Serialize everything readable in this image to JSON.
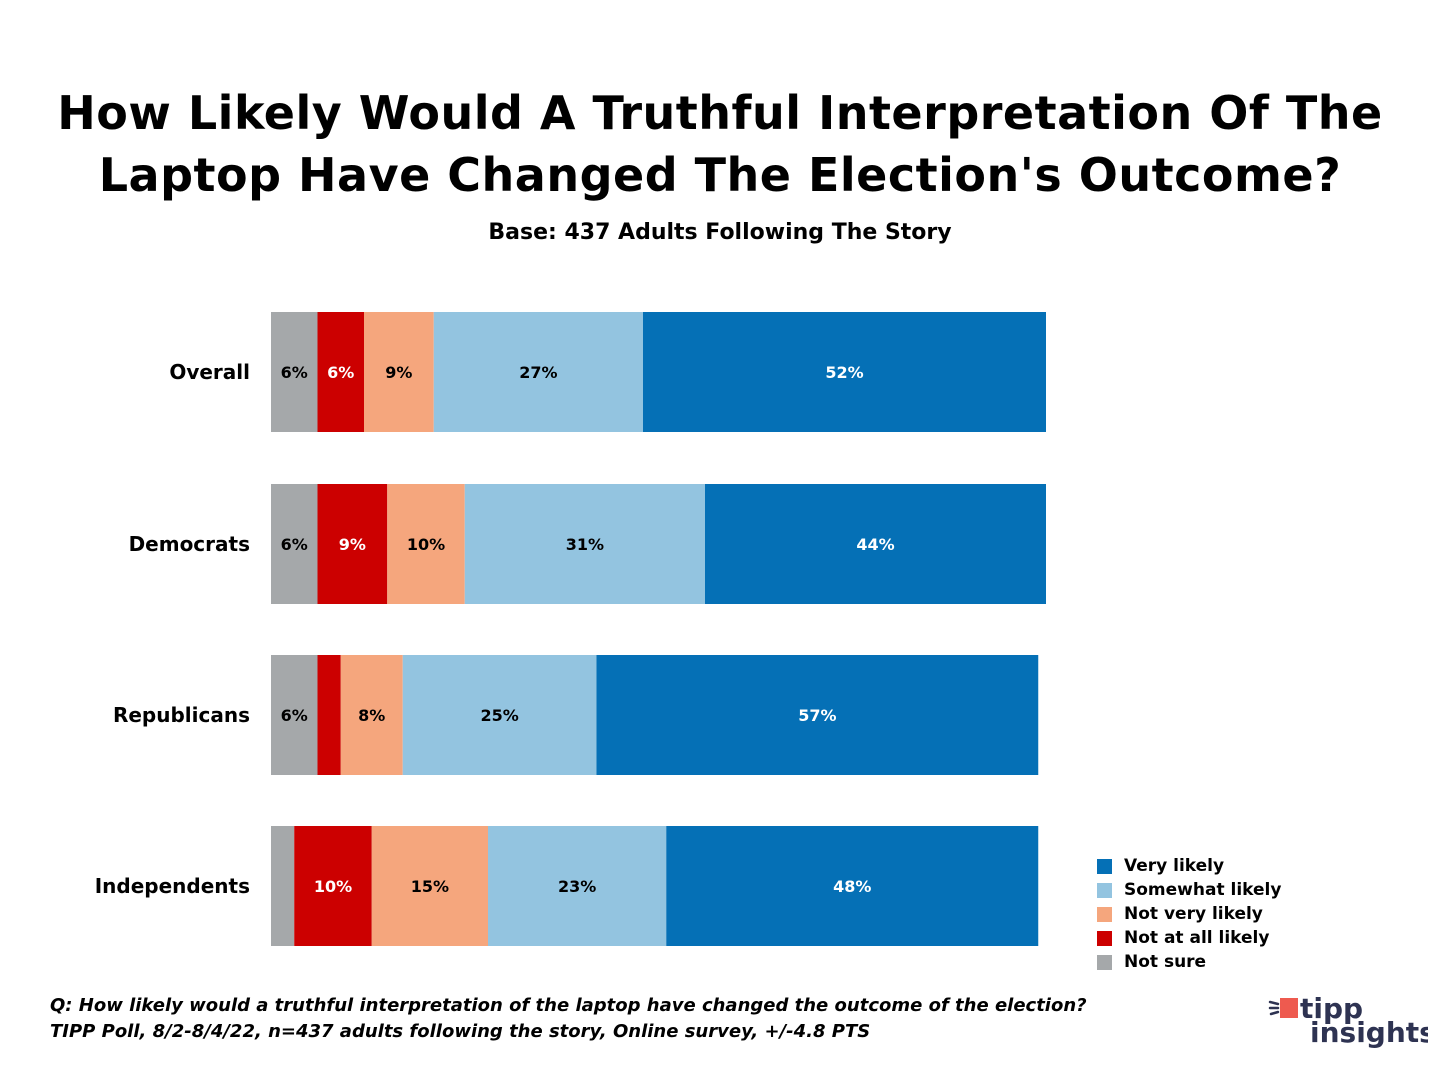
{
  "chart_data": {
    "type": "bar",
    "orientation": "horizontal",
    "stacked": true,
    "title": "How Likely Would A Truthful Interpretation Of The Laptop Have Changed The Election's Outcome?",
    "title_lines": [
      "How Likely Would A Truthful Interpretation Of The",
      "Laptop Have Changed The Election's Outcome?"
    ],
    "subtitle": "Base: 437 Adults Following The Story",
    "categories": [
      "Overall",
      "Democrats",
      "Republicans",
      "Independents"
    ],
    "series": [
      {
        "name": "Not sure",
        "color": "#a5a8aa",
        "label_color": "#000000",
        "values": [
          6,
          6,
          6,
          3
        ],
        "labels": [
          "6%",
          "6%",
          "6%",
          ""
        ]
      },
      {
        "name": "Not at all likely",
        "color": "#cc0000",
        "label_color": "#ffffff",
        "values": [
          6,
          9,
          3,
          10
        ],
        "labels": [
          "6%",
          "9%",
          "",
          "10%"
        ]
      },
      {
        "name": "Not very likely",
        "color": "#f5a67d",
        "label_color": "#000000",
        "values": [
          9,
          10,
          8,
          15
        ],
        "labels": [
          "9%",
          "10%",
          "8%",
          "15%"
        ]
      },
      {
        "name": "Somewhat likely",
        "color": "#93c4e0",
        "label_color": "#000000",
        "values": [
          27,
          31,
          25,
          23
        ],
        "labels": [
          "27%",
          "31%",
          "25%",
          "23%"
        ]
      },
      {
        "name": "Very likely",
        "color": "#0570b6",
        "label_color": "#ffffff",
        "values": [
          52,
          44,
          57,
          48
        ],
        "labels": [
          "52%",
          "44%",
          "57%",
          "48%"
        ]
      }
    ],
    "legend_order": [
      "Very likely",
      "Somewhat likely",
      "Not very likely",
      "Not at all likely",
      "Not sure"
    ],
    "legend_position": "bottom-right",
    "xlim": [
      0,
      100
    ],
    "grid": false
  },
  "footer": {
    "question": "Q: How likely would a truthful interpretation of the laptop have changed the outcome of the election?",
    "source": "TIPP Poll, 8/2-8/4/22, n=437 adults following the story, Online survey, +/-4.8 PTS"
  },
  "logo": {
    "line1": "tipp",
    "line2": "insights",
    "accent": "#ee5a4f",
    "text_color": "#2e3352"
  }
}
